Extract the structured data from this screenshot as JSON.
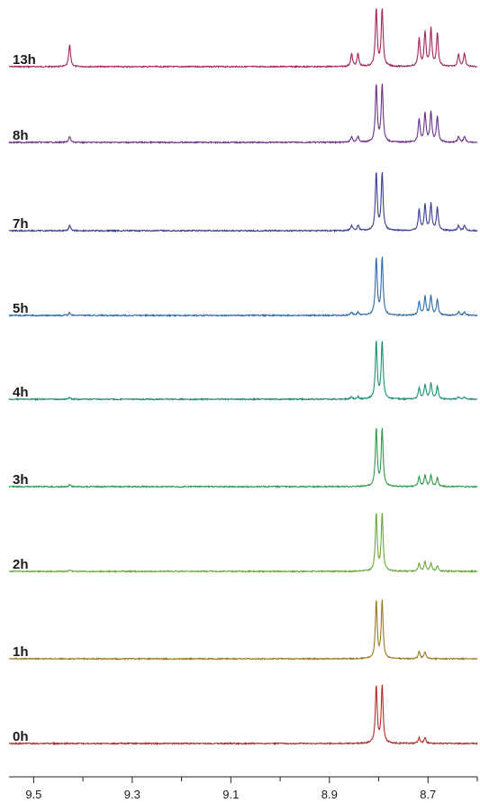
{
  "chart_data": {
    "type": "line",
    "title": "",
    "xlabel": "",
    "ylabel": "",
    "x_axis": {
      "min": 8.6,
      "max": 9.55,
      "reversed": true,
      "ticks": [
        9.5,
        9.3,
        9.1,
        8.9,
        8.7
      ],
      "tick_labels": [
        "9.5",
        "9.3",
        "9.1",
        "8.9",
        "8.7"
      ]
    },
    "grid": false,
    "legend": "none",
    "series": [
      {
        "label": "13h",
        "color": "#a3245a",
        "peaks": [
          {
            "ppm": 9.427,
            "h": 0.38
          },
          {
            "ppm": 8.855,
            "h": 0.22
          },
          {
            "ppm": 8.842,
            "h": 0.22
          },
          {
            "ppm": 8.805,
            "h": 1.0
          },
          {
            "ppm": 8.793,
            "h": 1.0
          },
          {
            "ppm": 8.718,
            "h": 0.48
          },
          {
            "ppm": 8.706,
            "h": 0.6
          },
          {
            "ppm": 8.694,
            "h": 0.65
          },
          {
            "ppm": 8.681,
            "h": 0.58
          },
          {
            "ppm": 8.638,
            "h": 0.22
          },
          {
            "ppm": 8.626,
            "h": 0.22
          }
        ]
      },
      {
        "label": "8h",
        "color": "#6b3288",
        "peaks": [
          {
            "ppm": 9.427,
            "h": 0.1
          },
          {
            "ppm": 8.855,
            "h": 0.1
          },
          {
            "ppm": 8.842,
            "h": 0.1
          },
          {
            "ppm": 8.805,
            "h": 1.0
          },
          {
            "ppm": 8.793,
            "h": 1.0
          },
          {
            "ppm": 8.718,
            "h": 0.4
          },
          {
            "ppm": 8.706,
            "h": 0.5
          },
          {
            "ppm": 8.694,
            "h": 0.52
          },
          {
            "ppm": 8.681,
            "h": 0.45
          },
          {
            "ppm": 8.638,
            "h": 0.1
          },
          {
            "ppm": 8.626,
            "h": 0.1
          }
        ]
      },
      {
        "label": "7h",
        "color": "#3a3e92",
        "peaks": [
          {
            "ppm": 9.427,
            "h": 0.09
          },
          {
            "ppm": 8.855,
            "h": 0.09
          },
          {
            "ppm": 8.842,
            "h": 0.09
          },
          {
            "ppm": 8.805,
            "h": 1.0
          },
          {
            "ppm": 8.793,
            "h": 1.0
          },
          {
            "ppm": 8.718,
            "h": 0.36
          },
          {
            "ppm": 8.706,
            "h": 0.44
          },
          {
            "ppm": 8.694,
            "h": 0.46
          },
          {
            "ppm": 8.681,
            "h": 0.4
          },
          {
            "ppm": 8.638,
            "h": 0.09
          },
          {
            "ppm": 8.626,
            "h": 0.09
          }
        ]
      },
      {
        "label": "5h",
        "color": "#2d6aa8",
        "peaks": [
          {
            "ppm": 9.427,
            "h": 0.05
          },
          {
            "ppm": 8.855,
            "h": 0.06
          },
          {
            "ppm": 8.842,
            "h": 0.06
          },
          {
            "ppm": 8.805,
            "h": 1.0
          },
          {
            "ppm": 8.793,
            "h": 1.0
          },
          {
            "ppm": 8.718,
            "h": 0.24
          },
          {
            "ppm": 8.706,
            "h": 0.32
          },
          {
            "ppm": 8.694,
            "h": 0.34
          },
          {
            "ppm": 8.681,
            "h": 0.28
          },
          {
            "ppm": 8.638,
            "h": 0.06
          },
          {
            "ppm": 8.626,
            "h": 0.06
          }
        ]
      },
      {
        "label": "4h",
        "color": "#1d8f74",
        "peaks": [
          {
            "ppm": 9.427,
            "h": 0.03
          },
          {
            "ppm": 8.855,
            "h": 0.04
          },
          {
            "ppm": 8.842,
            "h": 0.04
          },
          {
            "ppm": 8.805,
            "h": 1.0
          },
          {
            "ppm": 8.793,
            "h": 1.0
          },
          {
            "ppm": 8.718,
            "h": 0.2
          },
          {
            "ppm": 8.706,
            "h": 0.26
          },
          {
            "ppm": 8.694,
            "h": 0.28
          },
          {
            "ppm": 8.681,
            "h": 0.22
          },
          {
            "ppm": 8.638,
            "h": 0.04
          },
          {
            "ppm": 8.626,
            "h": 0.04
          }
        ]
      },
      {
        "label": "3h",
        "color": "#2f9a4c",
        "peaks": [
          {
            "ppm": 9.427,
            "h": 0.03
          },
          {
            "ppm": 8.805,
            "h": 1.0
          },
          {
            "ppm": 8.793,
            "h": 1.0
          },
          {
            "ppm": 8.718,
            "h": 0.16
          },
          {
            "ppm": 8.706,
            "h": 0.2
          },
          {
            "ppm": 8.694,
            "h": 0.2
          },
          {
            "ppm": 8.681,
            "h": 0.15
          }
        ]
      },
      {
        "label": "2h",
        "color": "#6aa83a",
        "peaks": [
          {
            "ppm": 9.427,
            "h": 0.02
          },
          {
            "ppm": 8.805,
            "h": 1.0
          },
          {
            "ppm": 8.793,
            "h": 1.0
          },
          {
            "ppm": 8.718,
            "h": 0.14
          },
          {
            "ppm": 8.706,
            "h": 0.16
          },
          {
            "ppm": 8.694,
            "h": 0.14
          },
          {
            "ppm": 8.681,
            "h": 0.1
          }
        ]
      },
      {
        "label": "1h",
        "color": "#9a7a22",
        "peaks": [
          {
            "ppm": 8.805,
            "h": 1.0
          },
          {
            "ppm": 8.793,
            "h": 1.0
          },
          {
            "ppm": 8.718,
            "h": 0.12
          },
          {
            "ppm": 8.706,
            "h": 0.12
          }
        ]
      },
      {
        "label": "0h",
        "color": "#b02a2a",
        "peaks": [
          {
            "ppm": 8.805,
            "h": 1.0
          },
          {
            "ppm": 8.793,
            "h": 1.0
          },
          {
            "ppm": 8.718,
            "h": 0.1
          },
          {
            "ppm": 8.706,
            "h": 0.1
          }
        ]
      }
    ]
  }
}
